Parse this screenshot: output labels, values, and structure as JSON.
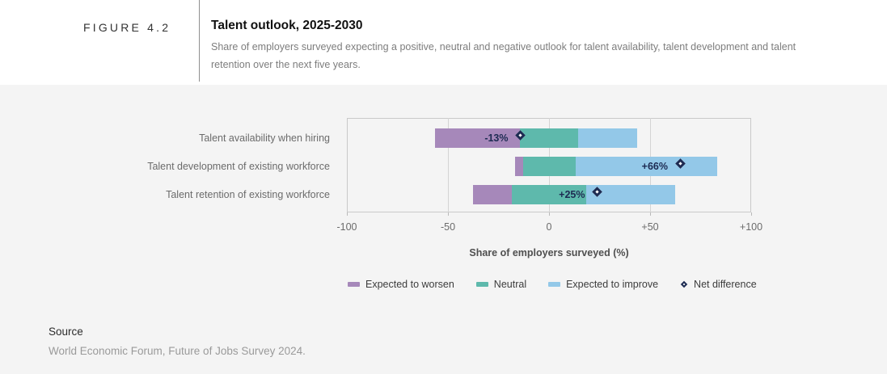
{
  "header": {
    "figure_label": "FIGURE 4.2",
    "title": "Talent outlook, 2025-2030",
    "subtitle": "Share of employers surveyed expecting a positive, neutral and negative outlook for talent availability, talent development and talent retention over the next five years."
  },
  "chart_data": {
    "type": "bar",
    "variant": "horizontal-diverging-stacked",
    "note": "Neutral segment is centered on zero; worsen extends left, improve extends right; diamond marks net difference (improve minus worsen).",
    "categories": [
      "Talent availability when hiring",
      "Talent development of existing workforce",
      "Talent retention of existing workforce"
    ],
    "series": [
      {
        "name": "Expected to worsen",
        "color": "#a688ba",
        "values": [
          42,
          4,
          19
        ]
      },
      {
        "name": "Neutral",
        "color": "#5eb9ac",
        "values": [
          29,
          26,
          37
        ]
      },
      {
        "name": "Expected to improve",
        "color": "#93c8e8",
        "values": [
          29,
          70,
          44
        ]
      }
    ],
    "net_difference": {
      "name": "Net difference",
      "values": [
        -13,
        66,
        25
      ],
      "labels": [
        "-13%",
        "+66%",
        "+25%"
      ],
      "marker": "white diamond with navy outline",
      "marker_color": "#1d2b52"
    },
    "xlabel": "Share of employers surveyed (%)",
    "xlim": [
      -100,
      100
    ],
    "x_ticks": [
      {
        "value": -100,
        "label": "-100"
      },
      {
        "value": -50,
        "label": "-50"
      },
      {
        "value": 0,
        "label": "0"
      },
      {
        "value": 50,
        "label": "+50"
      },
      {
        "value": 100,
        "label": "+100"
      }
    ],
    "grid": "vertical gridlines at -50, 0, +50",
    "legend_position": "bottom"
  },
  "legend": {
    "items": [
      {
        "label": "Expected to worsen",
        "type": "swatch",
        "color": "#a688ba"
      },
      {
        "label": "Neutral",
        "type": "swatch",
        "color": "#5eb9ac"
      },
      {
        "label": "Expected to improve",
        "type": "swatch",
        "color": "#93c8e8"
      },
      {
        "label": "Net difference",
        "type": "diamond"
      }
    ]
  },
  "source": {
    "heading": "Source",
    "text": "World Economic Forum, Future of Jobs Survey 2024."
  },
  "colors": {
    "band_background": "#f4f4f4",
    "plot_border": "#c9c9c9",
    "gridline": "#d4d4d4",
    "navy_accent": "#1d2b52"
  }
}
